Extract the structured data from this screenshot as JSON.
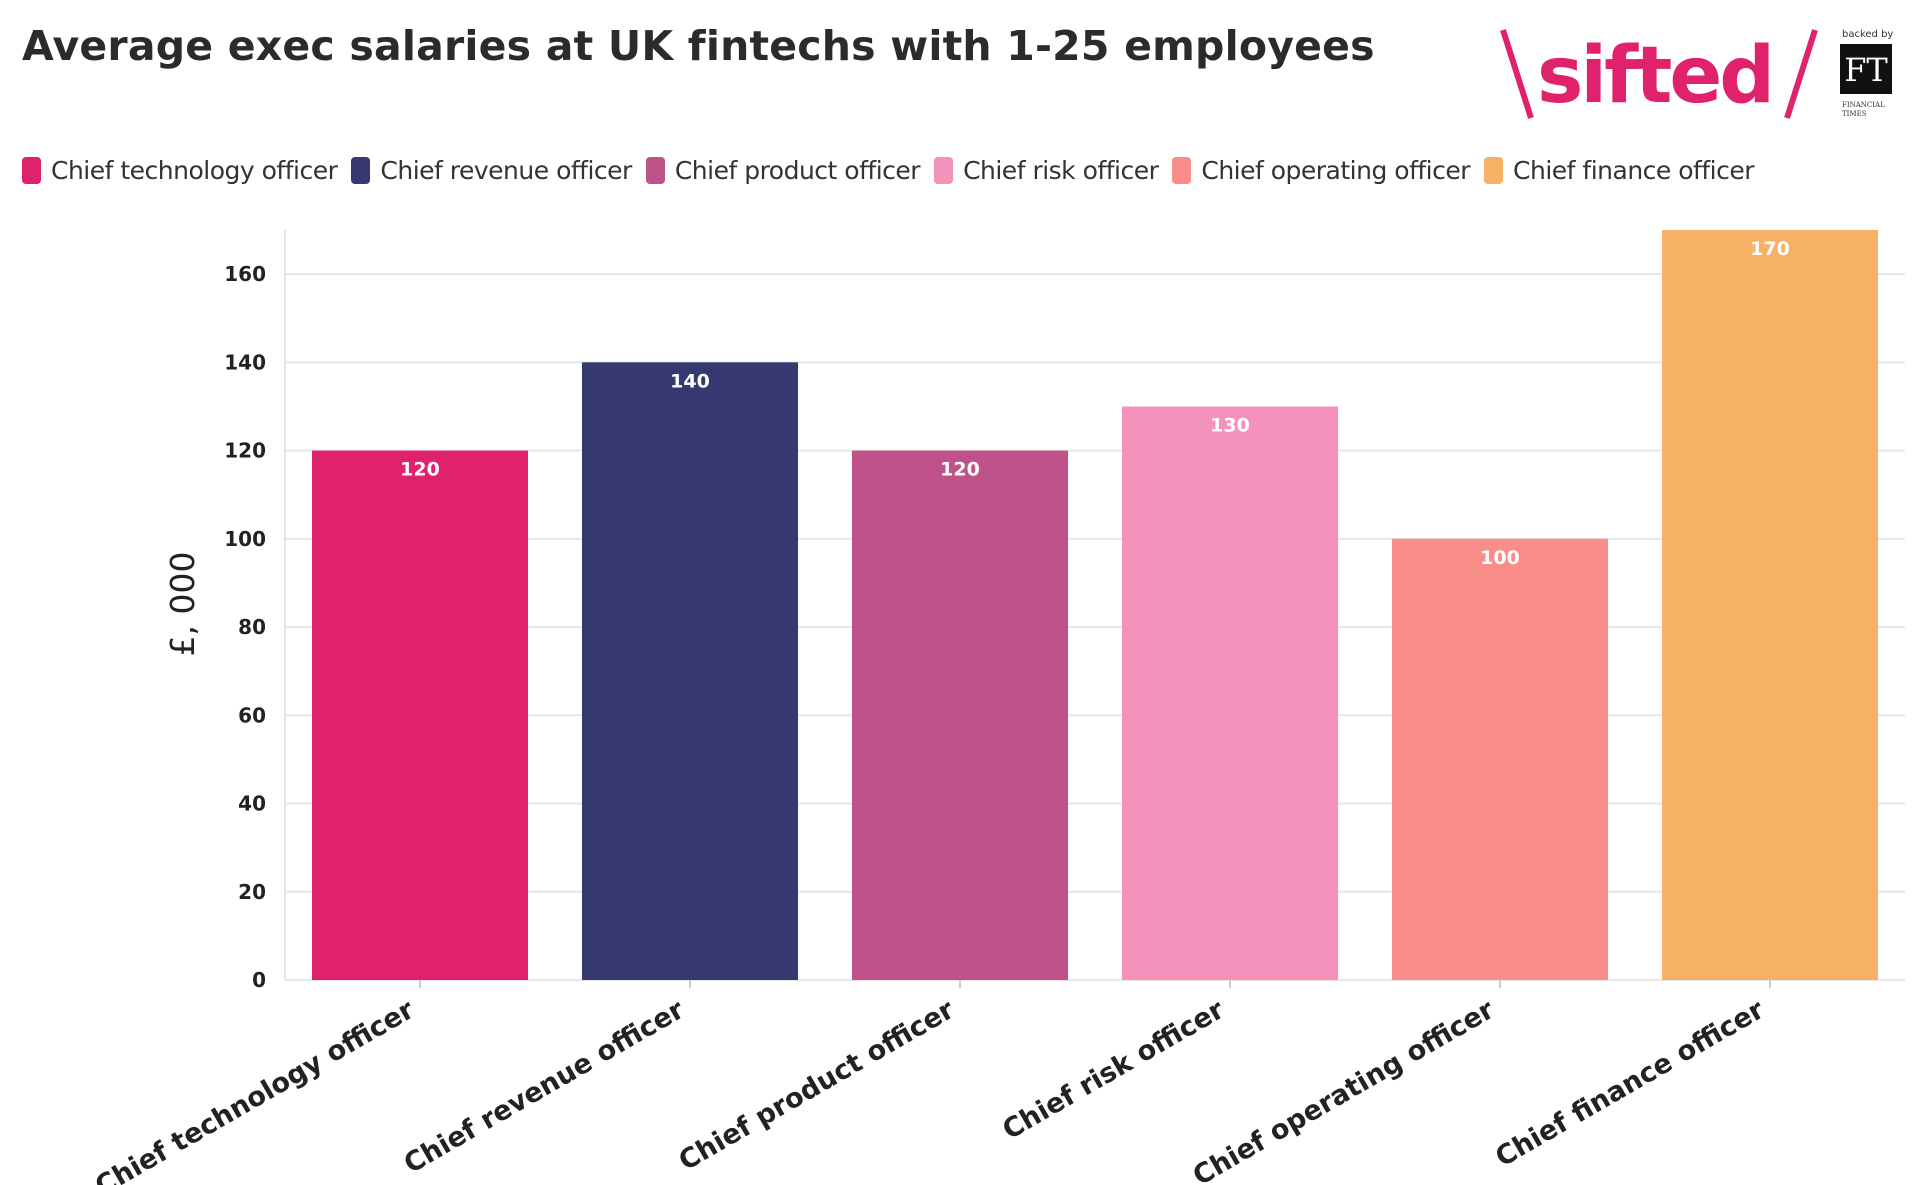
{
  "title": "Average exec salaries at UK fintechs with 1-25 employees",
  "logo": {
    "brand_text": "sifted",
    "backer_text": "backed by",
    "ft_text": "FT",
    "ft_sub1": "FINANCIAL",
    "ft_sub2": "TIMES",
    "brand_color": "#e0216c"
  },
  "legend": [
    {
      "label": "Chief technology officer",
      "color": "#e0216c"
    },
    {
      "label": "Chief revenue officer",
      "color": "#36396f"
    },
    {
      "label": "Chief product officer",
      "color": "#bf5289"
    },
    {
      "label": "Chief risk officer",
      "color": "#f592bb"
    },
    {
      "label": "Chief operating officer",
      "color": "#f88d89"
    },
    {
      "label": "Chief finance officer",
      "color": "#f6b166"
    }
  ],
  "chart_data": {
    "type": "bar",
    "title": "Average exec salaries at UK fintechs with 1-25 employees",
    "xlabel": "",
    "ylabel": "£, 000",
    "ylim": [
      0,
      170
    ],
    "yticks": [
      0,
      20,
      40,
      60,
      80,
      100,
      120,
      140,
      160
    ],
    "grid": true,
    "legend_position": "top",
    "categories": [
      "Chief technology officer",
      "Chief revenue officer",
      "Chief product officer",
      "Chief risk officer",
      "Chief operating officer",
      "Chief finance officer"
    ],
    "values": [
      120,
      140,
      120,
      130,
      100,
      170
    ],
    "colors": [
      "#e0216c",
      "#36396f",
      "#bf5289",
      "#f592bb",
      "#f88d89",
      "#f6b166"
    ],
    "data_labels": [
      "120",
      "140",
      "120",
      "130",
      "100",
      "170"
    ]
  }
}
